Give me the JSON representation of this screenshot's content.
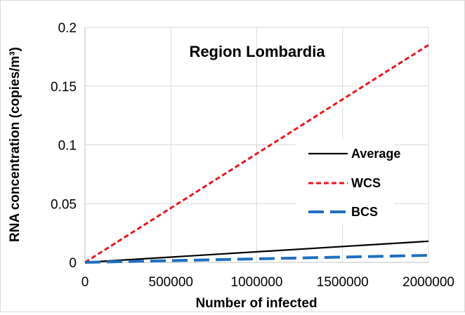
{
  "chart_data": {
    "type": "line",
    "title": "Region Lombardia",
    "xlabel": "Number of infected",
    "ylabel": "RNA concentration (copies/m³)",
    "xlim": [
      0,
      2000000
    ],
    "ylim": [
      0,
      0.2
    ],
    "x_ticks": [
      "0",
      "500000",
      "1000000",
      "1500000",
      "2000000"
    ],
    "y_ticks": [
      "0",
      "0.05",
      "0.1",
      "0.15",
      "0.2"
    ],
    "grid": true,
    "legend_position": "right",
    "series": [
      {
        "name": "Average",
        "color": "#000000",
        "dash": "solid",
        "x": [
          0,
          2000000
        ],
        "y": [
          0,
          0.018
        ]
      },
      {
        "name": "WCS",
        "color": "#e8161c",
        "dash": "dotted",
        "x": [
          0,
          2000000
        ],
        "y": [
          0,
          0.185
        ]
      },
      {
        "name": "BCS",
        "color": "#1f6fbf",
        "dash": "dashed",
        "x": [
          0,
          2000000
        ],
        "y": [
          0,
          0.006
        ]
      }
    ]
  }
}
